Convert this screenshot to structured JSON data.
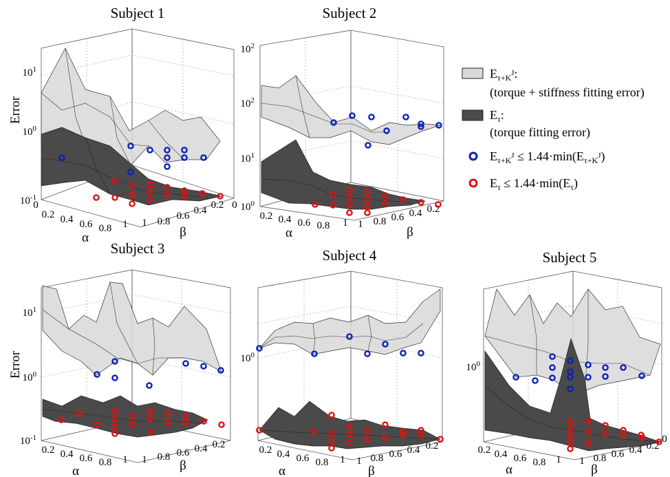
{
  "colors": {
    "light_surface": "#d9d9d9",
    "dark_surface": "#4a4a4a",
    "blue_marker": "#0a1fb5",
    "red_marker": "#e01010"
  },
  "legend": {
    "item1_symbol": "E",
    "item1_sub": "τ+K",
    "item1_sup": "J",
    "item1_colon": ":",
    "item1_desc": "(torque + stiffness fitting error)",
    "item2_symbol": "E",
    "item2_sub": "τ",
    "item2_colon": ":",
    "item2_desc": "(torque fitting error)",
    "item3_prefix": "E",
    "item3_sub": "τ+K",
    "item3_sup": "J",
    "item3_mid": " ≤ 1.44·min(E",
    "item3_end": ")",
    "item4_prefix": "E",
    "item4_sub": "τ",
    "item4_mid": " ≤ 1.44·min(E",
    "item4_end": ")"
  },
  "chart_data": [
    {
      "type": "surface3d",
      "title": "Subject 1",
      "zlabel": "Error",
      "xlabel": "α",
      "ylabel": "β",
      "z_scale": "log",
      "z_ticks": [
        "10-1",
        "10^0",
        "10^1"
      ],
      "alpha_ticks": [
        "0",
        "0.2",
        "0.4",
        "0.6",
        "0.8",
        "1"
      ],
      "beta_ticks": [
        "1",
        "0.8",
        "0.6",
        "0.4",
        "0.2",
        "0"
      ],
      "grid": true,
      "series": [
        {
          "name": "Eτ+KJ",
          "description": "torque + stiffness fitting error",
          "values": [
            [
              3.2,
              6,
              14,
              4,
              2
            ],
            [
              1.3,
              2.5,
              2.2,
              1.8,
              3
            ],
            [
              0.9,
              2.8,
              2.2,
              1.5,
              2
            ],
            [
              1.1,
              1.6,
              1.8,
              1.6,
              0.9
            ],
            [
              0.6,
              1.2,
              0.7,
              0.9,
              1.2
            ]
          ]
        },
        {
          "name": "Eτ",
          "description": "torque fitting error",
          "values": [
            [
              0.9,
              0.6,
              0.35,
              0.25,
              0.2
            ],
            [
              0.8,
              0.5,
              0.3,
              0.2,
              0.16
            ],
            [
              0.6,
              0.35,
              0.22,
              0.14,
              0.12
            ],
            [
              0.35,
              0.22,
              0.15,
              0.13,
              0.12
            ],
            [
              0.25,
              0.18,
              0.14,
              0.12,
              0.12
            ]
          ]
        }
      ]
    },
    {
      "type": "surface3d",
      "title": "Subject 2",
      "zlabel": "",
      "xlabel": "α",
      "ylabel": "β",
      "z_scale": "log",
      "z_ticks": [
        "10^0",
        "10^1",
        "10^2"
      ],
      "alpha_ticks": [
        "0.2",
        "0.4",
        "0.6",
        "0.8",
        "1"
      ],
      "beta_ticks": [
        "1",
        "0.8",
        "0.6",
        "0.4",
        "0.2"
      ],
      "grid": true,
      "series": [
        {
          "name": "Eτ+KJ",
          "description": "torque + stiffness fitting error",
          "values": [
            [
              18,
              28,
              10,
              4,
              3.5
            ],
            [
              12,
              15,
              7,
              4,
              4
            ],
            [
              9,
              8,
              5,
              3.5,
              3.5
            ],
            [
              6,
              5,
              4,
              4,
              3.5
            ],
            [
              4,
              4,
              4,
              3.5,
              3.5
            ]
          ]
        },
        {
          "name": "Eτ",
          "description": "torque fitting error",
          "values": [
            [
              0.6,
              0.9,
              1.5,
              0.4,
              0.2
            ],
            [
              0.4,
              0.6,
              0.4,
              0.2,
              0.12
            ],
            [
              0.3,
              0.4,
              0.25,
              0.14,
              0.1
            ],
            [
              0.2,
              0.2,
              0.15,
              0.12,
              0.1
            ],
            [
              0.15,
              0.13,
              0.12,
              0.1,
              0.1
            ]
          ]
        }
      ]
    },
    {
      "type": "surface3d",
      "title": "Subject 3",
      "zlabel": "Error",
      "xlabel": "α",
      "ylabel": "β",
      "z_scale": "log",
      "z_ticks": [
        "10-1",
        "10^0",
        "10^1"
      ],
      "alpha_ticks": [
        "0.2",
        "0.4",
        "0.6",
        "0.8",
        "1"
      ],
      "beta_ticks": [
        "1",
        "0.8",
        "0.6",
        "0.4",
        "0.2"
      ],
      "grid": true,
      "series": [
        {
          "name": "Eτ+KJ",
          "description": "torque + stiffness fitting error",
          "values": [
            [
              20,
              10,
              22,
              5,
              4
            ],
            [
              5,
              3,
              8,
              3,
              2
            ],
            [
              2,
              6,
              2.5,
              8,
              3
            ],
            [
              1,
              4,
              1.5,
              2,
              1.5
            ],
            [
              0.9,
              1.2,
              1,
              1.5,
              1
            ]
          ]
        },
        {
          "name": "Eτ",
          "description": "torque fitting error",
          "values": [
            [
              0.3,
              0.35,
              0.3,
              0.3,
              0.28
            ],
            [
              0.28,
              0.3,
              0.28,
              0.28,
              0.25
            ],
            [
              0.25,
              0.28,
              0.26,
              0.25,
              0.24
            ],
            [
              0.24,
              0.25,
              0.24,
              0.24,
              0.23
            ],
            [
              0.22,
              0.23,
              0.22,
              0.22,
              0.22
            ]
          ]
        }
      ]
    },
    {
      "type": "surface3d",
      "title": "Subject 4",
      "zlabel": "",
      "xlabel": "α",
      "ylabel": "β",
      "z_scale": "log",
      "z_ticks": [
        "10^0"
      ],
      "alpha_ticks": [
        "0.2",
        "0.4",
        "0.6",
        "0.8",
        "1"
      ],
      "beta_ticks": [
        "1",
        "0.8",
        "0.6",
        "0.4",
        "0.2"
      ],
      "grid": true,
      "series": [
        {
          "name": "Eτ+KJ",
          "description": "torque + stiffness fitting error",
          "values": [
            [
              1.1,
              1.8,
              1.5,
              2,
              1.6
            ],
            [
              1.4,
              1.2,
              1.6,
              1.3,
              1.8
            ],
            [
              1.2,
              1.5,
              1.2,
              1.4,
              1.6
            ],
            [
              1.3,
              1.1,
              1.4,
              1.2,
              2.2
            ],
            [
              1,
              1.2,
              1.1,
              1.3,
              2.5
            ]
          ]
        },
        {
          "name": "Eτ",
          "description": "torque fitting error",
          "values": [
            [
              0.2,
              0.35,
              0.25,
              0.22,
              0.2
            ],
            [
              0.3,
              0.22,
              0.2,
              0.18,
              0.17
            ],
            [
              0.22,
              0.2,
              0.18,
              0.17,
              0.16
            ],
            [
              0.2,
              0.18,
              0.17,
              0.16,
              0.15
            ],
            [
              0.18,
              0.17,
              0.16,
              0.15,
              0.14
            ]
          ]
        }
      ]
    },
    {
      "type": "surface3d",
      "title": "Subject 5",
      "zlabel": "",
      "xlabel": "α",
      "ylabel": "β",
      "z_scale": "log",
      "z_ticks": [
        "10^0"
      ],
      "alpha_ticks": [
        "0.2",
        "0.4",
        "0.6",
        "0.8",
        "1"
      ],
      "beta_ticks": [
        "1",
        "0.8",
        "0.6",
        "0.4",
        "0.2",
        "0"
      ],
      "grid": true,
      "series": [
        {
          "name": "Eτ+KJ",
          "description": "torque + stiffness fitting error",
          "values": [
            [
              2.5,
              4,
              3,
              3.5,
              2.5
            ],
            [
              2,
              2.8,
              2.2,
              2.6,
              1.8
            ],
            [
              1.6,
              1.8,
              1.6,
              2,
              1.5
            ],
            [
              1.3,
              1.4,
              1.3,
              1.5,
              1.2
            ],
            [
              1.1,
              1.1,
              1,
              1.1,
              1.1
            ]
          ]
        },
        {
          "name": "Eτ",
          "description": "torque fitting error",
          "values": [
            [
              1.5,
              0.8,
              0.5,
              0.3,
              0.2
            ],
            [
              0.7,
              0.45,
              1.2,
              0.25,
              0.18
            ],
            [
              0.4,
              0.3,
              0.22,
              0.18,
              0.15
            ],
            [
              0.25,
              0.2,
              0.17,
              0.15,
              0.14
            ],
            [
              0.18,
              0.16,
              0.15,
              0.14,
              0.13
            ]
          ]
        }
      ]
    }
  ],
  "panel_text": {
    "p1": {
      "title": "Subject 1",
      "zlabel": "Error",
      "xlabel": "α",
      "ylabel": "β",
      "zt_low": "10",
      "zt_low_exp": "-1",
      "zt_mid": "10",
      "zt_mid_exp": "0",
      "zt_high": "10",
      "zt_high_exp": "1",
      "a0": "0",
      "a1": "0.2",
      "a2": "0.4",
      "a3": "0.6",
      "a4": "0.8",
      "a5": "1",
      "b0": "1",
      "b1": "0.8",
      "b2": "0.6",
      "b3": "0.4",
      "b4": "0.2",
      "b5": "0"
    },
    "p2": {
      "title": "Subject 2",
      "xlabel": "α",
      "ylabel": "β",
      "zt_low": "10",
      "zt_low_exp": "0",
      "zt_mid": "10",
      "zt_mid_exp": "1",
      "zt_high": "10",
      "zt_high_exp": "2",
      "a1": "0.2",
      "a2": "0.4",
      "a3": "0.6",
      "a4": "0.8",
      "a5": "1",
      "b0": "1",
      "b1": "0.8",
      "b2": "0.6",
      "b3": "0.4",
      "b4": "0.2",
      "zero": "0"
    },
    "p3": {
      "title": "Subject 3",
      "zlabel": "Error",
      "xlabel": "α",
      "ylabel": "β",
      "zt_low": "10",
      "zt_low_exp": "-1",
      "zt_mid": "10",
      "zt_mid_exp": "0",
      "zt_high": "10",
      "zt_high_exp": "1",
      "a1": "0.2",
      "a2": "0.4",
      "a3": "0.6",
      "a4": "0.8",
      "a5": "1",
      "b0": "1",
      "b1": "0.8",
      "b2": "0.6",
      "b3": "0.4",
      "b4": "0.2"
    },
    "p4": {
      "title": "Subject 4",
      "xlabel": "α",
      "ylabel": "β",
      "zt_mid": "10",
      "zt_mid_exp": "0",
      "a1": "0.2",
      "a2": "0.4",
      "a3": "0.6",
      "a4": "0.8",
      "a5": "1",
      "b0": "1",
      "b1": "0.8",
      "b2": "0.6",
      "b3": "0.4",
      "b4": "0.2"
    },
    "p5": {
      "title": "Subject 5",
      "xlabel": "α",
      "ylabel": "β",
      "zt_mid": "10",
      "zt_mid_exp": "0",
      "a1": "0.2",
      "a2": "0.4",
      "a3": "0.6",
      "a4": "0.8",
      "a5": "1",
      "b0": "1",
      "b1": "0.8",
      "b2": "0.6",
      "b3": "0.4",
      "b4": "0.2",
      "b5": "0"
    }
  }
}
